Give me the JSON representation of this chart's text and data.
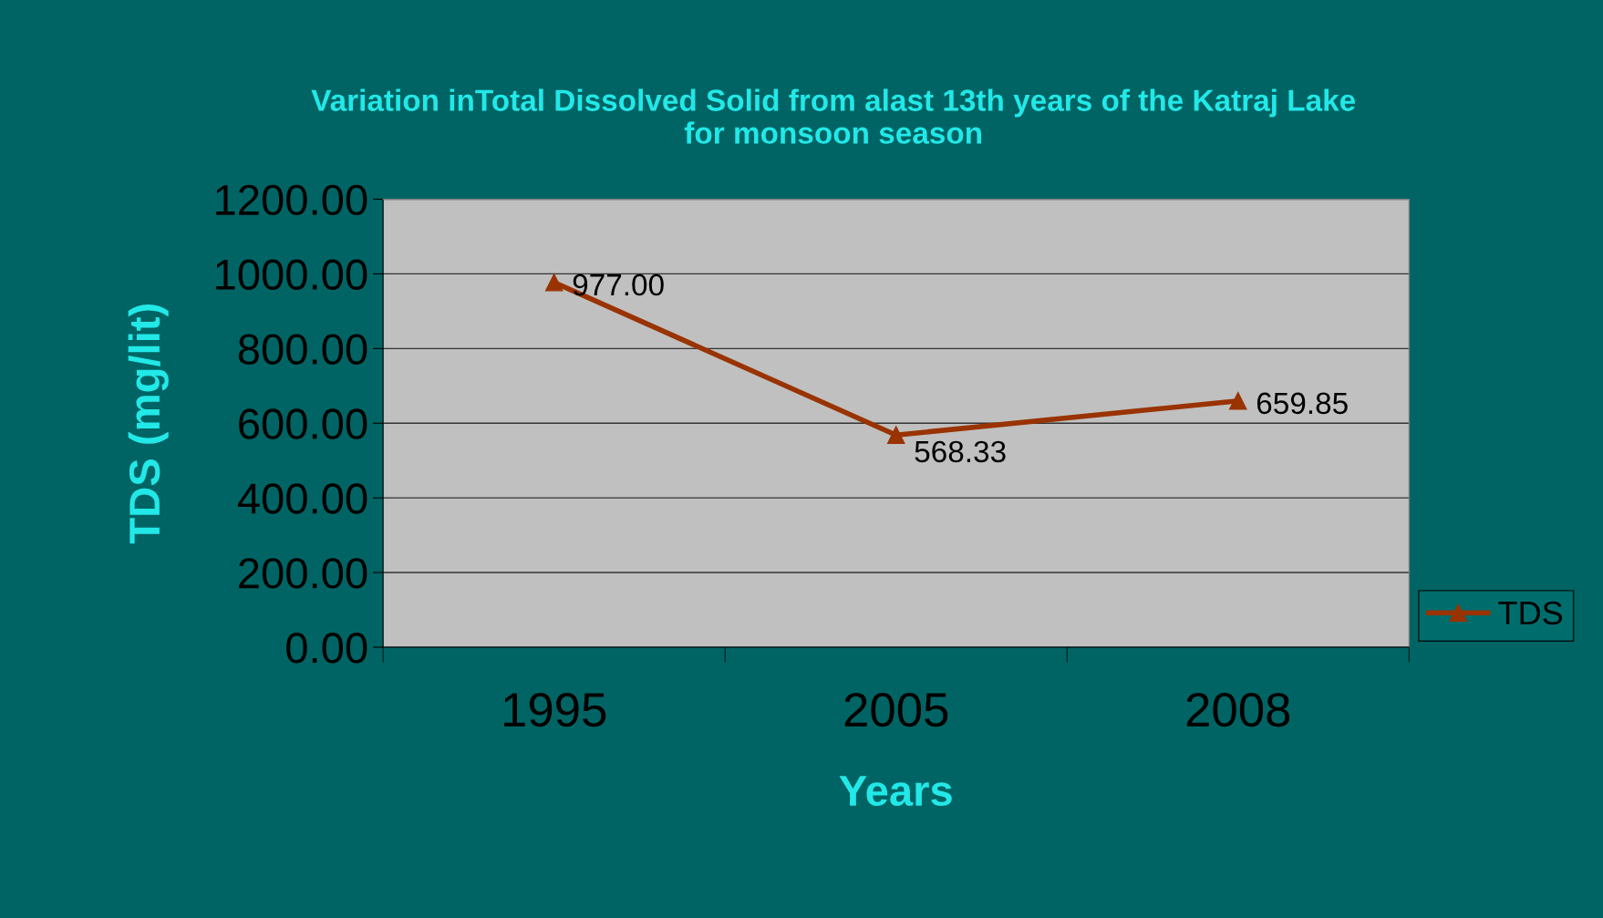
{
  "chart_data": {
    "type": "line",
    "title": "Variation inTotal Dissolved Solid from alast 13th years of the Katraj Lake\nfor monsoon season",
    "xlabel": "Years",
    "ylabel": "TDS (mg/lit)",
    "categories": [
      "1995",
      "2005",
      "2008"
    ],
    "series": [
      {
        "name": "TDS",
        "color": "#993300",
        "values": [
          977.0,
          568.33,
          659.85
        ],
        "value_labels": [
          "977.00",
          "568.33",
          "659.85"
        ]
      }
    ],
    "ylim": [
      0,
      1200
    ],
    "yticks": [
      {
        "value": 0,
        "label": "0.00"
      },
      {
        "value": 200,
        "label": "200.00"
      },
      {
        "value": 400,
        "label": "400.00"
      },
      {
        "value": 600,
        "label": "600.00"
      },
      {
        "value": 800,
        "label": "800.00"
      },
      {
        "value": 1000,
        "label": "1000.00"
      },
      {
        "value": 1200,
        "label": "1200.00"
      }
    ],
    "grid": "y",
    "legend": "right",
    "marker": "triangle",
    "line_style": "solid"
  }
}
